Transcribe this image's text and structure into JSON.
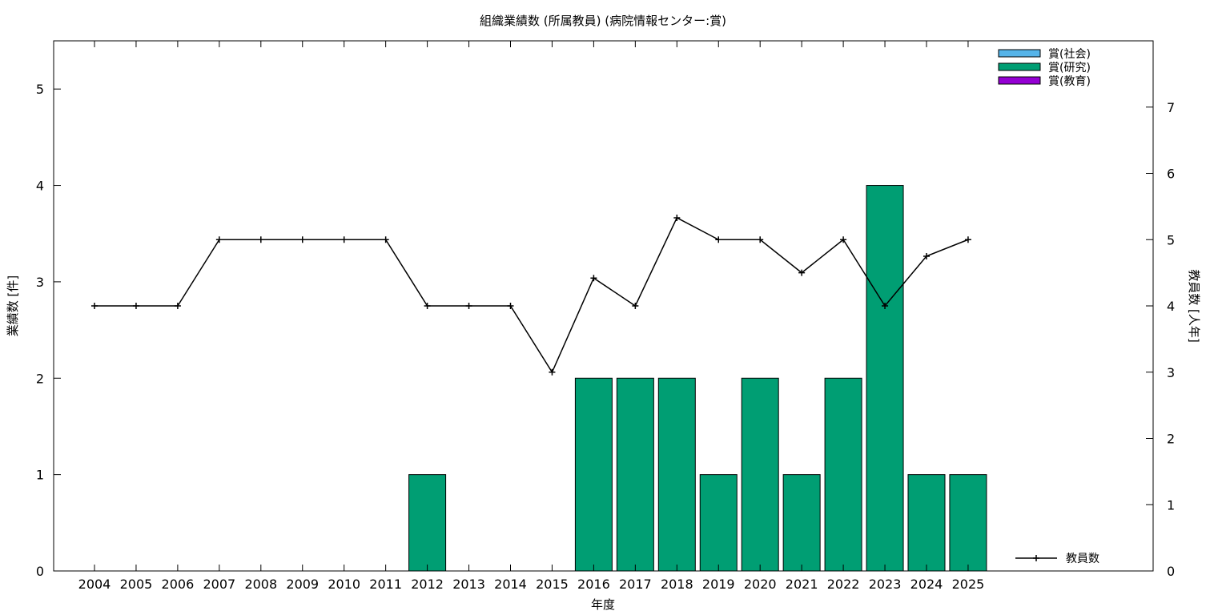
{
  "chart_data": {
    "type": "bar",
    "title": "組織業績数 (所属教員) (病院情報センター:賞)",
    "xlabel": "年度",
    "ylabel": "業績数 [件]",
    "y2label": "教員数 [人年]",
    "categories": [
      "2004",
      "2005",
      "2006",
      "2007",
      "2008",
      "2009",
      "2010",
      "2011",
      "2012",
      "2013",
      "2014",
      "2015",
      "2016",
      "2017",
      "2018",
      "2019",
      "2020",
      "2021",
      "2022",
      "2023",
      "2024",
      "2025"
    ],
    "ylim": [
      0,
      5.5
    ],
    "y2lim": [
      0,
      8
    ],
    "yticks": [
      0,
      1,
      2,
      3,
      4,
      5
    ],
    "y2ticks": [
      0,
      1,
      2,
      3,
      4,
      5,
      6,
      7
    ],
    "legend_position": "top-right",
    "series": [
      {
        "name": "賞(社会)",
        "color": "#56b4e9",
        "values": [
          0,
          0,
          0,
          0,
          0,
          0,
          0,
          0,
          0,
          0,
          0,
          0,
          0,
          0,
          0,
          0,
          0,
          0,
          0,
          0,
          0,
          0
        ]
      },
      {
        "name": "賞(研究)",
        "color": "#009e73",
        "values": [
          0,
          0,
          0,
          0,
          0,
          0,
          0,
          0,
          1,
          0,
          0,
          0,
          2,
          2,
          2,
          1,
          2,
          1,
          2,
          4,
          1,
          1
        ]
      },
      {
        "name": "賞(教育)",
        "color": "#9400d3",
        "values": [
          0,
          0,
          0,
          0,
          0,
          0,
          0,
          0,
          0,
          0,
          0,
          0,
          0,
          0,
          0,
          0,
          0,
          0,
          0,
          0,
          0,
          0
        ]
      }
    ],
    "line_series": {
      "name": "教員数",
      "axis": "y2",
      "color": "#000000",
      "values": [
        4,
        4,
        4,
        5,
        5,
        5,
        5,
        5,
        4,
        4,
        4,
        3,
        4.42,
        4,
        5.33,
        5,
        5,
        4.5,
        5,
        4,
        4.75,
        5
      ]
    }
  }
}
